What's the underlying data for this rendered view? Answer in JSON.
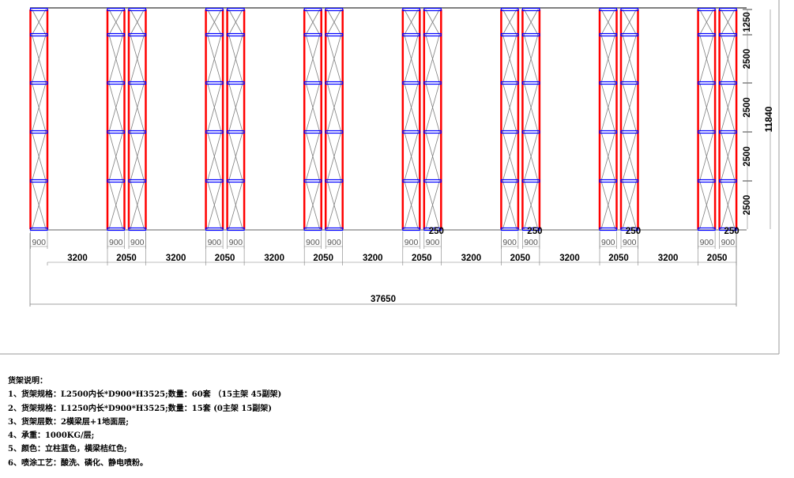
{
  "drawing": {
    "colors": {
      "upright": "#ff0000",
      "beam": "#0000ff",
      "brace": "#808080",
      "dimension": "#808080"
    },
    "bay_heights": [
      "1250",
      "2500",
      "2500",
      "2500",
      "2500"
    ],
    "total_height": "11840",
    "bottom_gap": "250",
    "depth_label": "900",
    "aisle_label": "3200",
    "double_rack_label": "2050",
    "total_length": "37650"
  },
  "notes": {
    "title": "货架说明：",
    "items": [
      "1、货架规格：L2500内长*D900*H3525;数量：60套 （15主架 45副架)",
      "2、货架规格：L1250内长*D900*H3525;数量：15套 (0主架 15副架)",
      "3、货架层数：2横梁层+1地面层;",
      "4、承重：1000KG/层;",
      "5、颜色：立柱蓝色，横梁桔红色;",
      "6、喷涂工艺：酸洗、磷化、静电喷粉。"
    ]
  }
}
